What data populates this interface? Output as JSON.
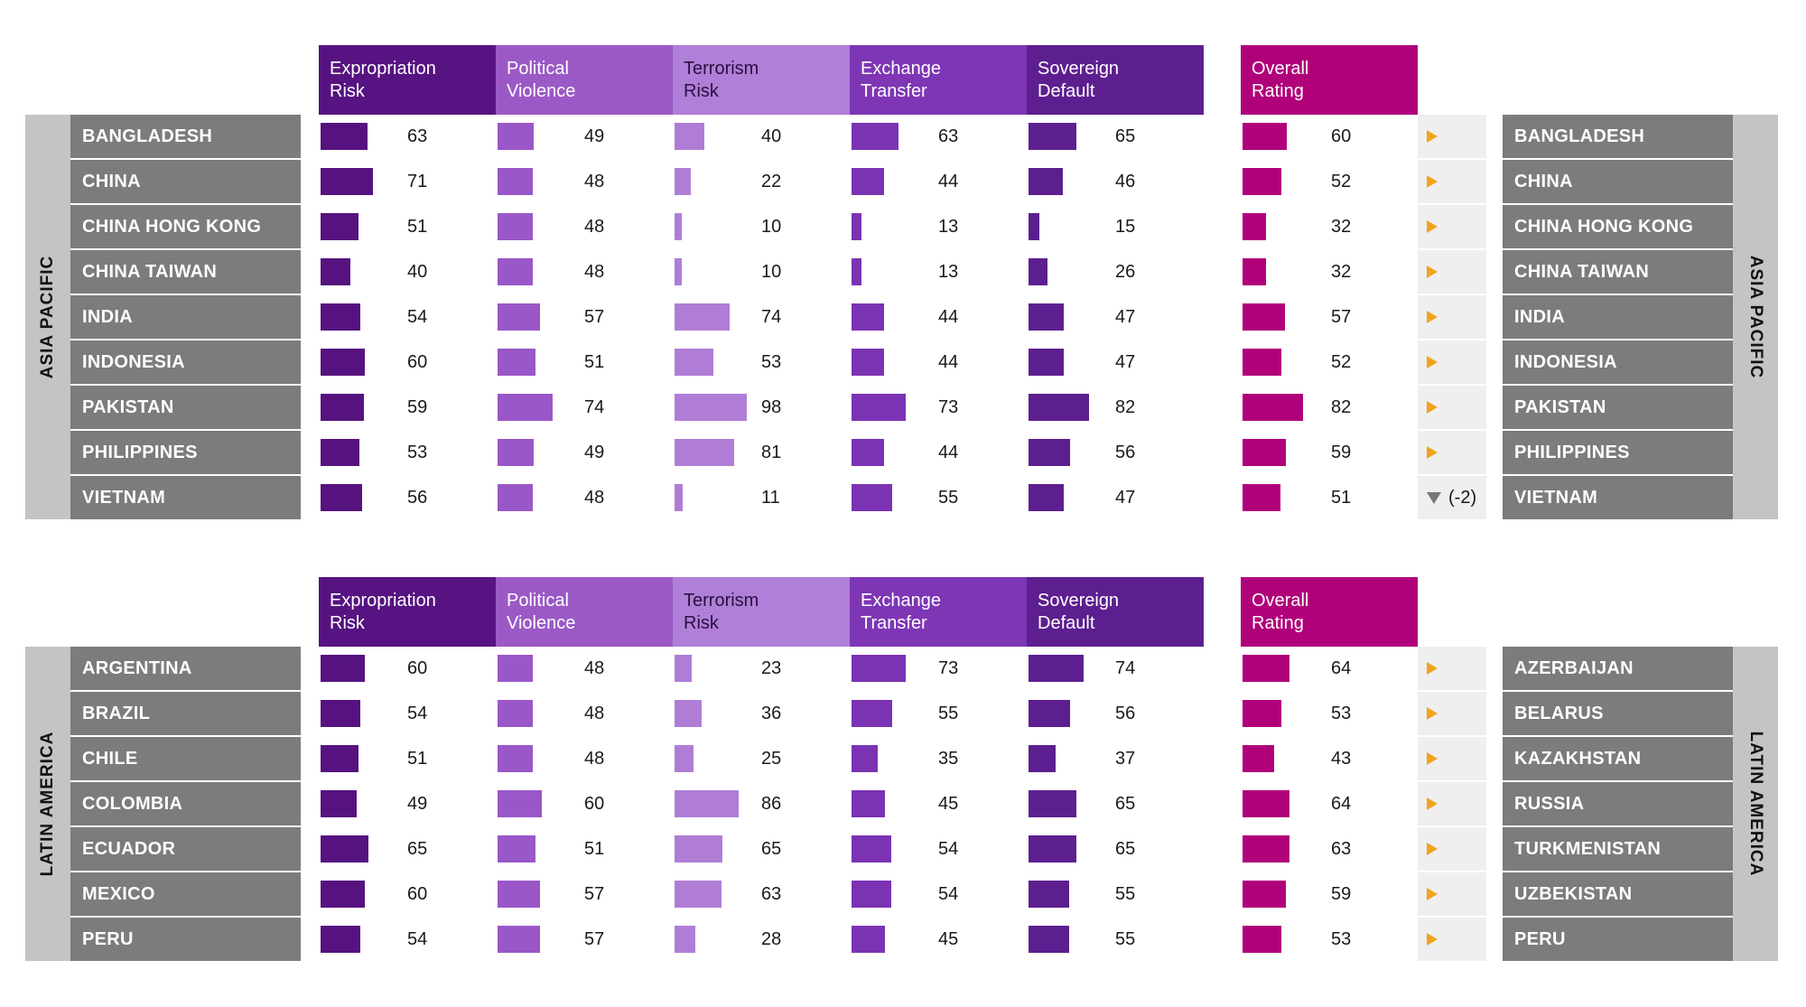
{
  "headers": {
    "columns": [
      [
        "Expropriation",
        "Risk"
      ],
      [
        "Political",
        "Violence"
      ],
      [
        "Terrorism",
        "Risk"
      ],
      [
        "Exchange",
        "Transfer"
      ],
      [
        "Sovereign",
        "Default"
      ]
    ],
    "overall": [
      "Overall",
      "Rating"
    ]
  },
  "colors": {
    "header_bg": [
      "#561381",
      "#9b59c6",
      "#b07fd8",
      "#7e36b5",
      "#5d1f8f"
    ],
    "header_text": [
      "#ffffff",
      "#ffffff",
      "#2a1040",
      "#ffffff",
      "#ffffff"
    ],
    "bars": [
      "#56137f",
      "#9a57c8",
      "#b07dd6",
      "#7b33b3",
      "#5d1f8f"
    ],
    "overall": "#b0007a",
    "trend_arrow": "#f2a31c",
    "trend_down": "#777777"
  },
  "chart_data": [
    {
      "type": "table",
      "region": "ASIA PACIFIC",
      "columns": [
        "Expropriation Risk",
        "Political Violence",
        "Terrorism Risk",
        "Exchange Transfer",
        "Sovereign Default",
        "Overall Rating"
      ],
      "value_range": [
        0,
        100
      ],
      "rows": [
        {
          "country": "BANGLADESH",
          "right_country": "BANGLADESH",
          "values": [
            63,
            49,
            40,
            63,
            65
          ],
          "overall": 60,
          "trend": "",
          "trend_dir": "right"
        },
        {
          "country": "CHINA",
          "right_country": "CHINA",
          "values": [
            71,
            48,
            22,
            44,
            46
          ],
          "overall": 52,
          "trend": "",
          "trend_dir": "right"
        },
        {
          "country": "CHINA HONG KONG",
          "right_country": "CHINA HONG KONG",
          "values": [
            51,
            48,
            10,
            13,
            15
          ],
          "overall": 32,
          "trend": "",
          "trend_dir": "right"
        },
        {
          "country": "CHINA TAIWAN",
          "right_country": "CHINA TAIWAN",
          "values": [
            40,
            48,
            10,
            13,
            26
          ],
          "overall": 32,
          "trend": "",
          "trend_dir": "right"
        },
        {
          "country": "INDIA",
          "right_country": "INDIA",
          "values": [
            54,
            57,
            74,
            44,
            47
          ],
          "overall": 57,
          "trend": "",
          "trend_dir": "right"
        },
        {
          "country": "INDONESIA",
          "right_country": "INDONESIA",
          "values": [
            60,
            51,
            53,
            44,
            47
          ],
          "overall": 52,
          "trend": "",
          "trend_dir": "right"
        },
        {
          "country": "PAKISTAN",
          "right_country": "PAKISTAN",
          "values": [
            59,
            74,
            98,
            73,
            82
          ],
          "overall": 82,
          "trend": "",
          "trend_dir": "right"
        },
        {
          "country": "PHILIPPINES",
          "right_country": "PHILIPPINES",
          "values": [
            53,
            49,
            81,
            44,
            56
          ],
          "overall": 59,
          "trend": "",
          "trend_dir": "right"
        },
        {
          "country": "VIETNAM",
          "right_country": "VIETNAM",
          "values": [
            56,
            48,
            11,
            55,
            47
          ],
          "overall": 51,
          "trend": "(-2)",
          "trend_dir": "down"
        }
      ]
    },
    {
      "type": "table",
      "region": "LATIN AMERICA",
      "columns": [
        "Expropriation Risk",
        "Political Violence",
        "Terrorism Risk",
        "Exchange Transfer",
        "Sovereign Default",
        "Overall Rating"
      ],
      "value_range": [
        0,
        100
      ],
      "rows": [
        {
          "country": "ARGENTINA",
          "right_country": "AZERBAIJAN",
          "values": [
            60,
            48,
            23,
            73,
            74
          ],
          "overall": 64,
          "trend": "",
          "trend_dir": "right"
        },
        {
          "country": "BRAZIL",
          "right_country": "BELARUS",
          "values": [
            54,
            48,
            36,
            55,
            56
          ],
          "overall": 53,
          "trend": "",
          "trend_dir": "right"
        },
        {
          "country": "CHILE",
          "right_country": "KAZAKHSTAN",
          "values": [
            51,
            48,
            25,
            35,
            37
          ],
          "overall": 43,
          "trend": "",
          "trend_dir": "right"
        },
        {
          "country": "COLOMBIA",
          "right_country": "RUSSIA",
          "values": [
            49,
            60,
            86,
            45,
            65
          ],
          "overall": 64,
          "trend": "",
          "trend_dir": "right"
        },
        {
          "country": "ECUADOR",
          "right_country": "TURKMENISTAN",
          "values": [
            65,
            51,
            65,
            54,
            65
          ],
          "overall": 63,
          "trend": "",
          "trend_dir": "right"
        },
        {
          "country": "MEXICO",
          "right_country": "UZBEKISTAN",
          "values": [
            60,
            57,
            63,
            54,
            55
          ],
          "overall": 59,
          "trend": "",
          "trend_dir": "right"
        },
        {
          "country": "PERU",
          "right_country": "PERU",
          "values": [
            54,
            57,
            28,
            45,
            55
          ],
          "overall": 53,
          "trend": "",
          "trend_dir": "right"
        }
      ]
    }
  ]
}
